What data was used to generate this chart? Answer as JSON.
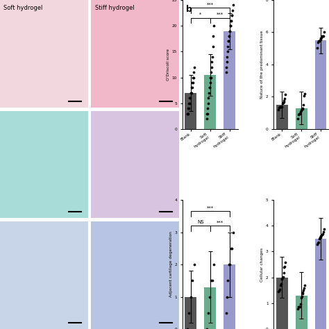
{
  "title_b": "b",
  "bar_colors": [
    "#555555",
    "#6aab8e",
    "#9999cc"
  ],
  "categories": [
    "Blank",
    "Soft hydrogel",
    "Stiff hydrogel"
  ],
  "odriscoll": {
    "means": [
      7.0,
      10.5,
      19.0
    ],
    "errors": [
      3.5,
      4.0,
      3.5
    ],
    "ylim": [
      0,
      25
    ],
    "yticks": [
      0,
      5,
      10,
      15,
      20,
      25
    ],
    "ylabel": "O'Driscoll score",
    "dots": [
      [
        12,
        11,
        10,
        10,
        9,
        9,
        8,
        8,
        7,
        7,
        7,
        6,
        6,
        5,
        5,
        4,
        4,
        3,
        3,
        3
      ],
      [
        20,
        18,
        16,
        14,
        13,
        12,
        11,
        10,
        10,
        9,
        8,
        8,
        7,
        6,
        5,
        4,
        3,
        3,
        2
      ],
      [
        24,
        23,
        22,
        22,
        21,
        21,
        20,
        20,
        19,
        19,
        18,
        18,
        17,
        17,
        16,
        15,
        14,
        13,
        12,
        11
      ]
    ]
  },
  "nature": {
    "means": [
      1.5,
      1.3,
      5.5
    ],
    "errors": [
      0.8,
      1.0,
      0.8
    ],
    "ylim": [
      0,
      8
    ],
    "yticks": [
      0,
      2,
      4,
      6,
      8
    ],
    "ylabel": "Nature of the predominant tissue"
  },
  "adjacent": {
    "means": [
      1.0,
      1.3,
      2.0
    ],
    "errors": [
      0.8,
      1.1,
      1.0
    ],
    "ylim": [
      0,
      4
    ],
    "yticks": [
      0,
      1,
      2,
      3,
      4
    ],
    "ylabel": "Adjacent cartilage degeneration",
    "dots": [
      [
        2.0,
        1.5,
        1.0,
        0.5,
        0.0
      ],
      [
        2.0,
        1.5,
        1.5,
        1.0,
        0.5,
        0.0
      ],
      [
        3.0,
        2.5,
        2.5,
        2.0,
        2.0,
        1.5,
        1.0,
        0.5
      ]
    ]
  },
  "cellular": {
    "means": [
      2.0,
      1.3,
      3.5
    ],
    "errors": [
      0.8,
      0.9,
      0.8
    ],
    "ylim": [
      0,
      5
    ],
    "yticks": [
      0,
      1,
      2,
      3,
      4,
      5
    ],
    "ylabel": "Cellular changes"
  },
  "img_colors_soft": [
    "#f2d8de",
    "#a8dcd8",
    "#c8d4e8"
  ],
  "img_colors_stiff": [
    "#f0b8c8",
    "#d8c4e0",
    "#b8c4e4"
  ],
  "soft_label": "Soft hydrogel",
  "stiff_label": "Stiff hydrogel",
  "b_label": "b"
}
